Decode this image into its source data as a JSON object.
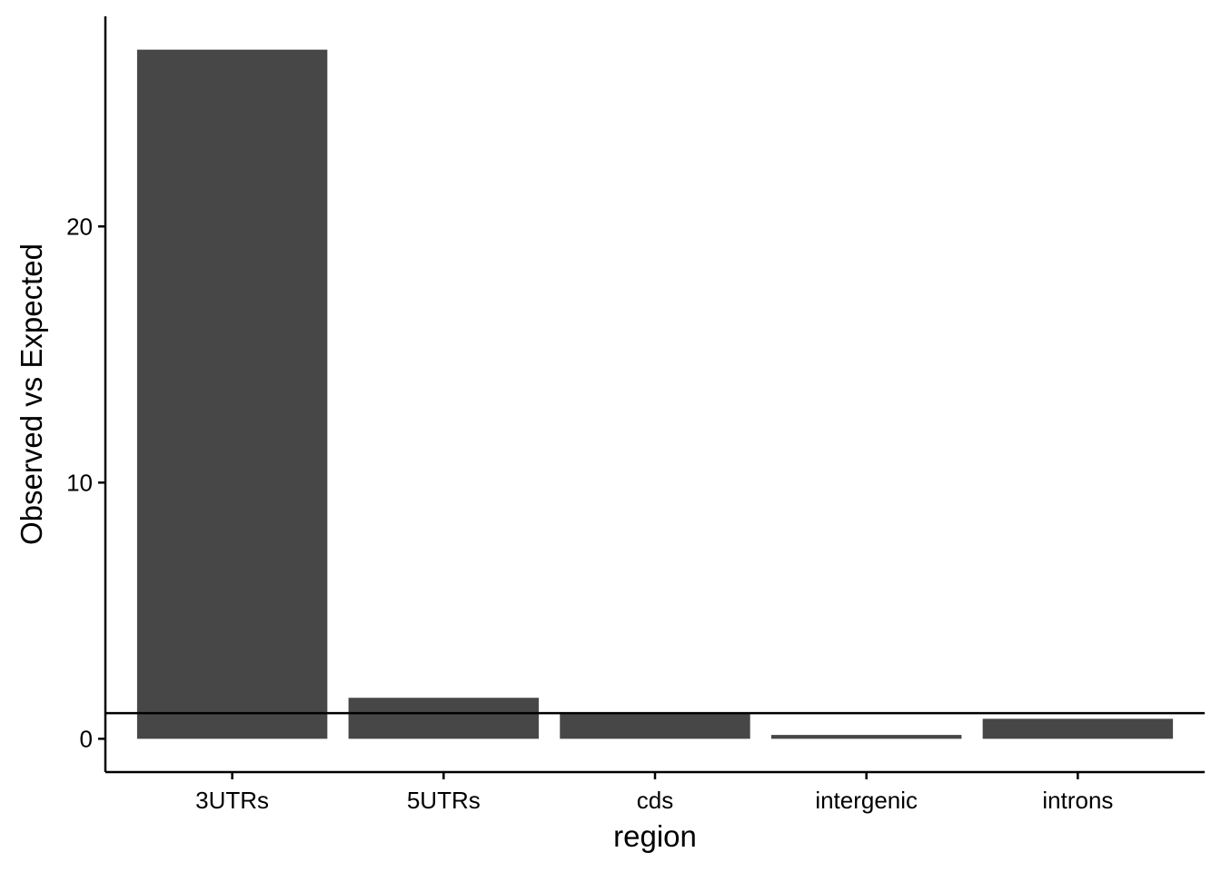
{
  "chart_data": {
    "type": "bar",
    "title": "",
    "xlabel": "region",
    "ylabel": "Observed vs Expected",
    "categories": [
      "3UTRs",
      "5UTRs",
      "cds",
      "intergenic",
      "introns"
    ],
    "values": [
      26.9,
      1.6,
      1.0,
      0.15,
      0.78
    ],
    "ylim": [
      -1.3,
      28.2
    ],
    "yticks": [
      0,
      10,
      20
    ],
    "reference_line": {
      "y": 1
    },
    "grid": false,
    "legend": "none",
    "colors": {
      "bar": "#474747",
      "axis": "#000000",
      "reference_line": "#000000"
    }
  }
}
